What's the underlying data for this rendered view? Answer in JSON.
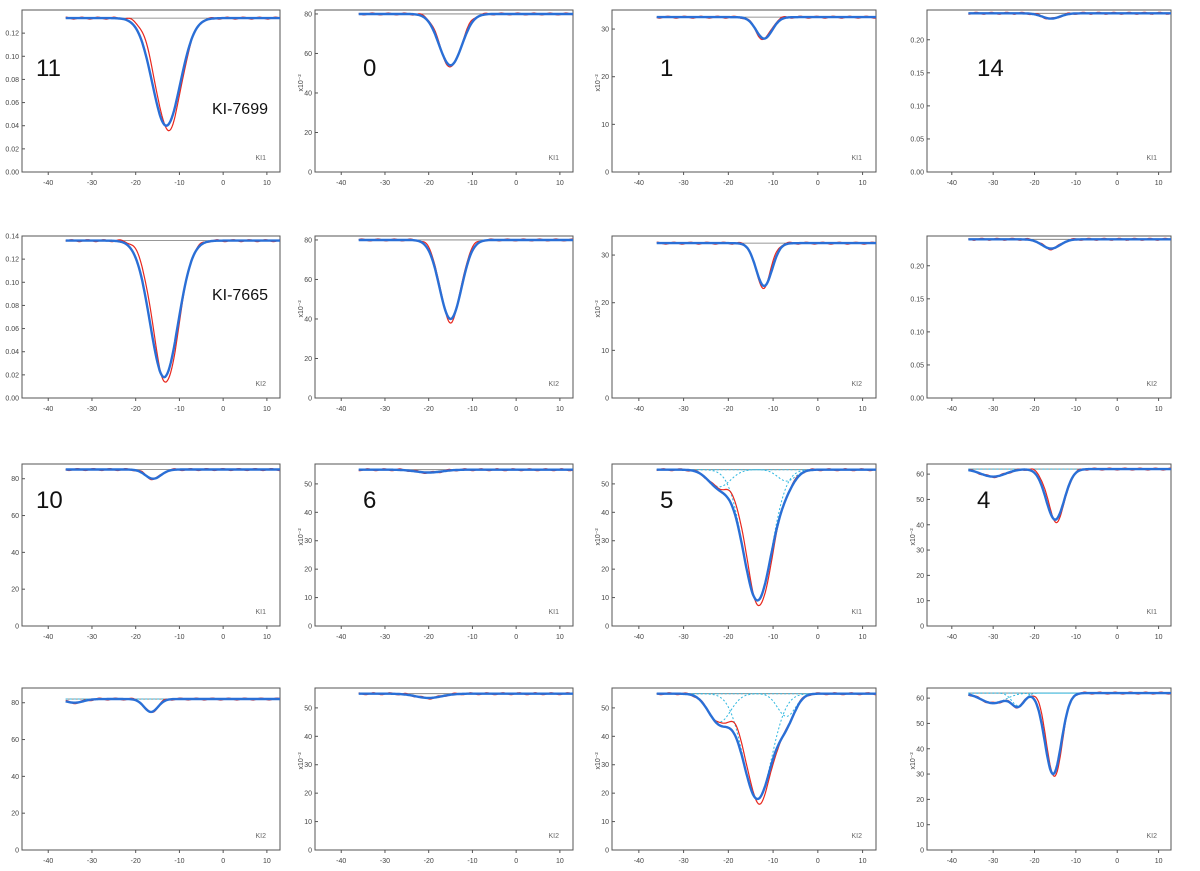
{
  "figure": {
    "rows": 4,
    "cols": 4
  },
  "colors": {
    "observed": "#e8281e",
    "model": "#2a6fd6",
    "continuum": "#777777",
    "component": "#31b8e0",
    "frame": "#555555"
  },
  "chart_data": [
    {
      "type": "line",
      "panel_label": "11",
      "line_label": "KI-7699",
      "side_label": "KI1",
      "xlim": [
        -46,
        13
      ],
      "ylim": [
        0,
        0.14
      ],
      "yscale_label": "",
      "xticks": [
        "-40",
        "-30",
        "-20",
        "-10",
        "0",
        "10"
      ],
      "yticks": [
        "0.00",
        "0.02",
        "0.04",
        "0.06",
        "0.08",
        "0.10",
        "0.12"
      ],
      "yticks_values": [
        0,
        0.02,
        0.04,
        0.06,
        0.08,
        0.1,
        0.12
      ],
      "cont": 0.133,
      "wings": [],
      "dips": [
        {
          "c": -13,
          "d": 0.093,
          "w": 3.2
        }
      ],
      "shifts": [
        0.5,
        -0.4
      ]
    },
    {
      "type": "line",
      "panel_label": "0",
      "line_label": "",
      "side_label": "KI1",
      "xlim": [
        -46,
        13
      ],
      "ylim": [
        0,
        82
      ],
      "yscale_label": "x10⁻²",
      "xticks": [
        "-40",
        "-30",
        "-20",
        "-10",
        "0",
        "10"
      ],
      "yticks": [
        "0",
        "20",
        "40",
        "60",
        "80"
      ],
      "yticks_values": [
        0,
        20,
        40,
        60,
        80
      ],
      "cont": 80,
      "wings": [],
      "dips": [
        {
          "c": -15,
          "d": 26,
          "w": 2.6
        }
      ],
      "shifts": [
        0,
        0.3
      ]
    },
    {
      "type": "line",
      "panel_label": "1",
      "line_label": "",
      "side_label": "KI1",
      "xlim": [
        -46,
        13
      ],
      "ylim": [
        0,
        34
      ],
      "yscale_label": "x10⁻²",
      "xticks": [
        "-40",
        "-30",
        "-20",
        "-10",
        "0",
        "10"
      ],
      "yticks": [
        "0",
        "10",
        "20",
        "30"
      ],
      "yticks_values": [
        0,
        10,
        20,
        30
      ],
      "cont": 32.5,
      "wings": [],
      "dips": [
        {
          "c": -12,
          "d": 4.5,
          "w": 1.8
        }
      ],
      "shifts": [
        -0.2,
        0.2
      ]
    },
    {
      "type": "line",
      "panel_label": "14",
      "line_label": "",
      "side_label": "KI1",
      "xlim": [
        -46,
        13
      ],
      "ylim": [
        0,
        0.245
      ],
      "yscale_label": "",
      "xticks": [
        "-40",
        "-30",
        "-20",
        "-10",
        "0",
        "10"
      ],
      "yticks": [
        "0.00",
        "0.05",
        "0.10",
        "0.15",
        "0.20"
      ],
      "yticks_values": [
        0,
        0.05,
        0.1,
        0.15,
        0.2
      ],
      "cont": 0.24,
      "wings": [],
      "dips": [
        {
          "c": -16,
          "d": 0.008,
          "w": 2.2
        }
      ],
      "shifts": [
        0,
        0
      ]
    },
    {
      "type": "line",
      "panel_label": "",
      "line_label": "KI-7665",
      "side_label": "KI2",
      "xlim": [
        -46,
        13
      ],
      "ylim": [
        0,
        0.14
      ],
      "yscale_label": "",
      "xticks": [
        "-40",
        "-30",
        "-20",
        "-10",
        "0",
        "10"
      ],
      "yticks": [
        "0.00",
        "0.02",
        "0.04",
        "0.06",
        "0.08",
        "0.10",
        "0.12",
        "0.14"
      ],
      "yticks_values": [
        0,
        0.02,
        0.04,
        0.06,
        0.08,
        0.1,
        0.12,
        0.14
      ],
      "cont": 0.136,
      "wings": [],
      "dips": [
        {
          "c": -13.5,
          "d": 0.118,
          "w": 3.2
        }
      ],
      "shifts": [
        0.4,
        -0.3
      ]
    },
    {
      "type": "line",
      "panel_label": "",
      "line_label": "",
      "side_label": "KI2",
      "xlim": [
        -46,
        13
      ],
      "ylim": [
        0,
        82
      ],
      "yscale_label": "x10⁻²",
      "xticks": [
        "-40",
        "-30",
        "-20",
        "-10",
        "0",
        "10"
      ],
      "yticks": [
        "0",
        "20",
        "40",
        "60",
        "80"
      ],
      "yticks_values": [
        0,
        20,
        40,
        60,
        80
      ],
      "cont": 80,
      "wings": [],
      "dips": [
        {
          "c": -15,
          "d": 40,
          "w": 2.5
        }
      ],
      "shifts": [
        0,
        0.3
      ]
    },
    {
      "type": "line",
      "panel_label": "",
      "line_label": "",
      "side_label": "KI2",
      "xlim": [
        -46,
        13
      ],
      "ylim": [
        0,
        34
      ],
      "yscale_label": "x10⁻²",
      "xticks": [
        "-40",
        "-30",
        "-20",
        "-10",
        "0",
        "10"
      ],
      "yticks": [
        "0",
        "10",
        "20",
        "30"
      ],
      "yticks_values": [
        0,
        10,
        20,
        30
      ],
      "cont": 32.5,
      "wings": [],
      "dips": [
        {
          "c": -12,
          "d": 9,
          "w": 1.8
        }
      ],
      "shifts": [
        -0.2,
        0.2
      ]
    },
    {
      "type": "line",
      "panel_label": "",
      "line_label": "",
      "side_label": "KI2",
      "xlim": [
        -46,
        13
      ],
      "ylim": [
        0,
        0.245
      ],
      "yscale_label": "",
      "xticks": [
        "-40",
        "-30",
        "-20",
        "-10",
        "0",
        "10"
      ],
      "yticks": [
        "0.00",
        "0.05",
        "0.10",
        "0.15",
        "0.20"
      ],
      "yticks_values": [
        0,
        0.05,
        0.1,
        0.15,
        0.2
      ],
      "cont": 0.24,
      "wings": [],
      "dips": [
        {
          "c": -16,
          "d": 0.014,
          "w": 2.2
        }
      ],
      "shifts": [
        0,
        0
      ]
    },
    {
      "type": "line",
      "panel_label": "10",
      "line_label": "",
      "side_label": "KI1",
      "xlim": [
        -46,
        13
      ],
      "ylim": [
        0,
        88
      ],
      "yscale_label": "",
      "xticks": [
        "-40",
        "-30",
        "-20",
        "-10",
        "0",
        "10"
      ],
      "yticks": [
        "0",
        "20",
        "40",
        "60",
        "80"
      ],
      "yticks_values": [
        0,
        20,
        40,
        60,
        80
      ],
      "cont": 85,
      "wings": [],
      "dips": [
        {
          "c": -16,
          "d": 5,
          "w": 1.8
        }
      ],
      "shifts": [
        0,
        0
      ]
    },
    {
      "type": "line",
      "panel_label": "6",
      "line_label": "",
      "side_label": "KI1",
      "xlim": [
        -46,
        13
      ],
      "ylim": [
        0,
        57
      ],
      "yscale_label": "x10⁻²",
      "xticks": [
        "-40",
        "-30",
        "-20",
        "-10",
        "0",
        "10"
      ],
      "yticks": [
        "0",
        "10",
        "20",
        "30",
        "40",
        "50"
      ],
      "yticks_values": [
        0,
        10,
        20,
        30,
        40,
        50
      ],
      "cont": 55,
      "wings": [],
      "dips": [
        {
          "c": -20,
          "d": 1,
          "w": 3
        }
      ],
      "shifts": [
        0,
        0
      ]
    },
    {
      "type": "line",
      "panel_label": "5",
      "line_label": "",
      "side_label": "KI1",
      "xlim": [
        -46,
        13
      ],
      "ylim": [
        0,
        57
      ],
      "yscale_label": "x10⁻²",
      "xticks": [
        "-40",
        "-30",
        "-20",
        "-10",
        "0",
        "10"
      ],
      "yticks": [
        "0",
        "10",
        "20",
        "30",
        "40",
        "50"
      ],
      "yticks_values": [
        0,
        10,
        20,
        30,
        40,
        50
      ],
      "cont": 55,
      "wings": [
        {
          "c": -22,
          "d": 6,
          "w": 2.5
        },
        {
          "c": -7,
          "d": 4,
          "w": 2
        }
      ],
      "dips": [
        {
          "c": -13.5,
          "d": 46,
          "w": 3.2
        }
      ],
      "shifts": [
        0.4,
        -0.3
      ]
    },
    {
      "type": "line",
      "panel_label": "4",
      "line_label": "",
      "side_label": "KI1",
      "xlim": [
        -46,
        13
      ],
      "ylim": [
        0,
        64
      ],
      "yscale_label": "x10⁻²",
      "xticks": [
        "-40",
        "-30",
        "-20",
        "-10",
        "0",
        "10"
      ],
      "yticks": [
        "0",
        "10",
        "20",
        "30",
        "40",
        "50",
        "60"
      ],
      "yticks_values": [
        0,
        10,
        20,
        30,
        40,
        50,
        60
      ],
      "cont": 62,
      "wings": [
        {
          "c": -30,
          "d": 3,
          "w": 3
        }
      ],
      "dips": [
        {
          "c": -15,
          "d": 20,
          "w": 2.2
        }
      ],
      "shifts": [
        0.3,
        -0.2
      ]
    },
    {
      "type": "line",
      "panel_label": "",
      "line_label": "",
      "side_label": "KI2",
      "xlim": [
        -46,
        13
      ],
      "ylim": [
        0,
        88
      ],
      "yscale_label": "",
      "xticks": [
        "-40",
        "-30",
        "-20",
        "-10",
        "0",
        "10"
      ],
      "yticks": [
        "0",
        "20",
        "40",
        "60",
        "80"
      ],
      "yticks_values": [
        0,
        20,
        40,
        60,
        80
      ],
      "cont": 82,
      "wings": [
        {
          "c": -34,
          "d": 2,
          "w": 2
        }
      ],
      "dips": [
        {
          "c": -16.5,
          "d": 7,
          "w": 1.6
        }
      ],
      "shifts": [
        0,
        0
      ]
    },
    {
      "type": "line",
      "panel_label": "",
      "line_label": "",
      "side_label": "KI2",
      "xlim": [
        -46,
        13
      ],
      "ylim": [
        0,
        57
      ],
      "yscale_label": "x10⁻²",
      "xticks": [
        "-40",
        "-30",
        "-20",
        "-10",
        "0",
        "10"
      ],
      "yticks": [
        "0",
        "10",
        "20",
        "30",
        "40",
        "50"
      ],
      "yticks_values": [
        0,
        10,
        20,
        30,
        40,
        50
      ],
      "cont": 55,
      "wings": [],
      "dips": [
        {
          "c": -20,
          "d": 1.5,
          "w": 3
        }
      ],
      "shifts": [
        0,
        0
      ]
    },
    {
      "type": "line",
      "panel_label": "",
      "line_label": "",
      "side_label": "KI2",
      "xlim": [
        -46,
        13
      ],
      "ylim": [
        0,
        57
      ],
      "yscale_label": "x10⁻²",
      "xticks": [
        "-40",
        "-30",
        "-20",
        "-10",
        "0",
        "10"
      ],
      "yticks": [
        "0",
        "10",
        "20",
        "30",
        "40",
        "50"
      ],
      "yticks_values": [
        0,
        10,
        20,
        30,
        40,
        50
      ],
      "cont": 55,
      "wings": [
        {
          "c": -22,
          "d": 10,
          "w": 2.5
        },
        {
          "c": -7,
          "d": 8,
          "w": 2
        }
      ],
      "dips": [
        {
          "c": -13.5,
          "d": 37,
          "w": 3.2
        }
      ],
      "shifts": [
        0.4,
        -0.3
      ]
    },
    {
      "type": "line",
      "panel_label": "",
      "line_label": "",
      "side_label": "KI2",
      "xlim": [
        -46,
        13
      ],
      "ylim": [
        0,
        64
      ],
      "yscale_label": "x10⁻²",
      "xticks": [
        "-40",
        "-30",
        "-20",
        "-10",
        "0",
        "10"
      ],
      "yticks": [
        "0",
        "10",
        "20",
        "30",
        "40",
        "50",
        "60"
      ],
      "yticks_values": [
        0,
        10,
        20,
        30,
        40,
        50,
        60
      ],
      "cont": 62,
      "wings": [
        {
          "c": -30,
          "d": 4,
          "w": 3
        },
        {
          "c": -24,
          "d": 5,
          "w": 1.5
        }
      ],
      "dips": [
        {
          "c": -15.5,
          "d": 32,
          "w": 2
        }
      ],
      "shifts": [
        0.3,
        -0.3
      ]
    }
  ]
}
